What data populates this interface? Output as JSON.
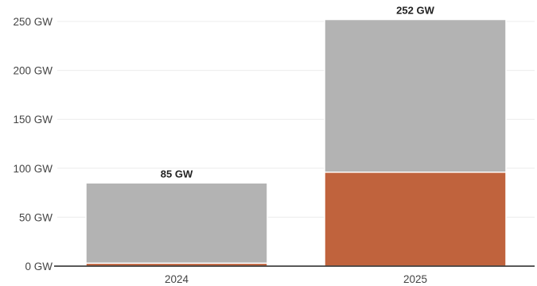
{
  "chart_data": {
    "type": "bar",
    "stacked": true,
    "title": "",
    "xlabel": "",
    "ylabel": "",
    "categories": [
      "2024",
      "2025"
    ],
    "series": [
      {
        "color": "#c0633d",
        "values": [
          3,
          96
        ]
      },
      {
        "color": "#b3b3b3",
        "values": [
          82,
          156
        ]
      }
    ],
    "totals": [
      85,
      252
    ],
    "total_labels": [
      "85 GW",
      "252 GW"
    ],
    "ylim": [
      0,
      250
    ],
    "y_ticks": [
      0,
      50,
      100,
      150,
      200,
      250
    ],
    "y_tick_labels": [
      "0 GW",
      "50 GW",
      "100 GW",
      "150 GW",
      "200 GW",
      "250 GW"
    ],
    "grid": true,
    "legend": "none"
  }
}
